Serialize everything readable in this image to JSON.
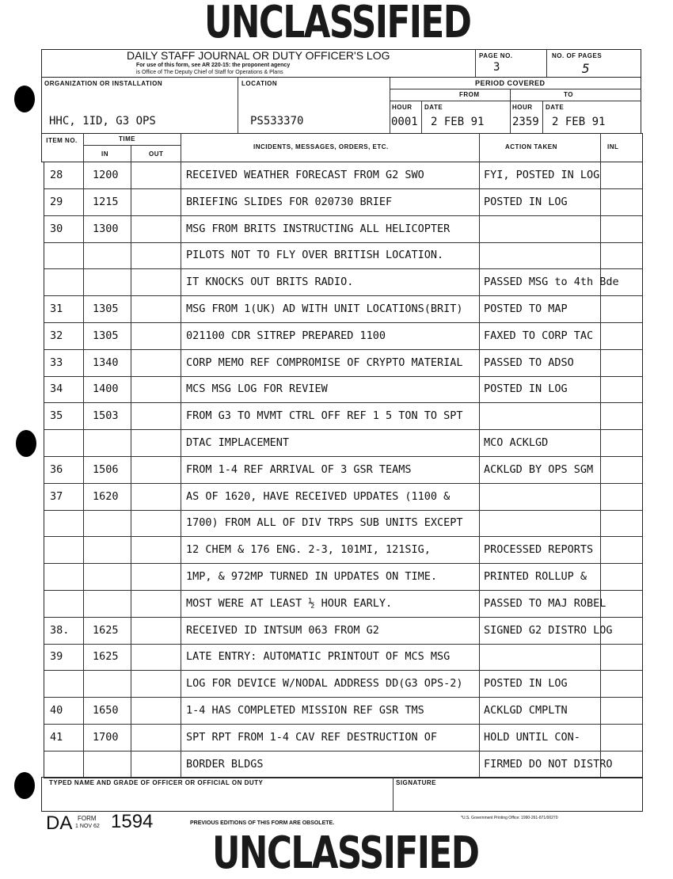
{
  "stamps": {
    "top": "UNCLASSIFIED",
    "bottom": "UNCLASSIFIED"
  },
  "form": {
    "title": "DAILY STAFF JOURNAL OR DUTY OFFICER'S LOG",
    "subtitle1": "For use of this form, see AR 220-15: the proponent agency",
    "subtitle2": "is Office of The Deputy Chief of Staff for Operations & Plans",
    "page_no_label": "PAGE NO.",
    "page_no": "3",
    "pages_label": "NO. OF PAGES",
    "pages": "5",
    "org_label": "ORGANIZATION OR INSTALLATION",
    "org": "HHC, 1ID, G3 OPS",
    "loc_label": "LOCATION",
    "loc": "PS533370",
    "period_label": "PERIOD COVERED",
    "from_label": "FROM",
    "to_label": "TO",
    "hour_label": "HOUR",
    "date_label": "DATE",
    "from_hour": "0001",
    "from_date": "2 FEB 91",
    "to_hour": "2359",
    "to_date": "2 FEB 91"
  },
  "columns": {
    "item": "ITEM NO.",
    "time": "TIME",
    "in": "IN",
    "out": "OUT",
    "incidents": "INCIDENTS, MESSAGES, ORDERS, ETC.",
    "action": "ACTION TAKEN",
    "inl": "INL"
  },
  "rows": [
    {
      "item": "28",
      "in": "1200",
      "text": "RECEIVED WEATHER FORECAST FROM G2 SWO",
      "action": "FYI, POSTED IN LOG"
    },
    {
      "item": "29",
      "in": "1215",
      "text": "BRIEFING SLIDES FOR 020730 BRIEF",
      "action": "POSTED IN LOG"
    },
    {
      "item": "30",
      "in": "1300",
      "text": "MSG FROM BRITS INSTRUCTING ALL HELICOPTER",
      "action": ""
    },
    {
      "item": "",
      "in": "",
      "text": "PILOTS NOT TO FLY OVER BRITISH LOCATION.",
      "action": ""
    },
    {
      "item": "",
      "in": "",
      "text": "IT KNOCKS OUT BRITS RADIO.",
      "action": "PASSED MSG to 4th Bde"
    },
    {
      "item": "31",
      "in": "1305",
      "text": "MSG FROM 1(UK) AD WITH UNIT LOCATIONS(BRIT)",
      "action": "POSTED TO MAP"
    },
    {
      "item": "32",
      "in": "1305",
      "text": "021100 CDR SITREP PREPARED 1100",
      "action": "FAXED TO CORP TAC"
    },
    {
      "item": "33",
      "in": "1340",
      "text": "CORP MEMO REF COMPROMISE OF CRYPTO MATERIAL",
      "action": "PASSED TO ADSO"
    },
    {
      "item": "34",
      "in": "1400",
      "text": "MCS MSG LOG FOR REVIEW",
      "action": "POSTED IN LOG"
    },
    {
      "item": "35",
      "in": "1503",
      "text": "FROM G3 TO MVMT CTRL OFF REF 1 5 TON TO SPT",
      "action": ""
    },
    {
      "item": "",
      "in": "",
      "text": "DTAC IMPLACEMENT",
      "action": "MCO ACKLGD"
    },
    {
      "item": "36",
      "in": "1506",
      "text": "FROM 1-4 REF ARRIVAL OF 3 GSR TEAMS",
      "action": "ACKLGD BY OPS SGM"
    },
    {
      "item": "37",
      "in": "1620",
      "text": "AS OF 1620, HAVE RECEIVED UPDATES (1100 &",
      "action": ""
    },
    {
      "item": "",
      "in": "",
      "text": "1700) FROM ALL OF DIV TRPS SUB UNITS EXCEPT",
      "action": ""
    },
    {
      "item": "",
      "in": "",
      "text": "12 CHEM & 176 ENG.  2-3, 101MI, 121SIG,",
      "action": "PROCESSED REPORTS"
    },
    {
      "item": "",
      "in": "",
      "text": "1MP, & 972MP TURNED IN UPDATES ON TIME.",
      "action": "PRINTED ROLLUP &"
    },
    {
      "item": "",
      "in": "",
      "text": "MOST WERE AT LEAST ½ HOUR EARLY.",
      "action": "PASSED TO MAJ ROBEL"
    },
    {
      "item": "38.",
      "in": "1625",
      "text": "RECEIVED ID INTSUM 063 FROM G2",
      "action": "SIGNED G2 DISTRO LOG"
    },
    {
      "item": "39",
      "in": "1625",
      "text": "LATE ENTRY:  AUTOMATIC PRINTOUT OF MCS MSG",
      "action": ""
    },
    {
      "item": "",
      "in": "",
      "text": "LOG FOR DEVICE W/NODAL ADDRESS DD(G3 OPS-2)",
      "action": "POSTED IN LOG"
    },
    {
      "item": "40",
      "in": "1650",
      "text": "1-4 HAS COMPLETED MISSION REF GSR TMS",
      "action": "ACKLGD CMPLTN"
    },
    {
      "item": "41",
      "in": "1700",
      "text": "SPT RPT FROM 1-4 CAV REF DESTRUCTION OF",
      "action": "HOLD UNTIL CON-"
    },
    {
      "item": "",
      "in": "",
      "text": "BORDER BLDGS",
      "action": "FIRMED DO NOT DISTRO"
    }
  ],
  "footer": {
    "name_label": "TYPED NAME AND GRADE OF OFFICER OR OFFICIAL ON DUTY",
    "sig_label": "SIGNATURE",
    "form_da": "DA",
    "form_word": "FORM",
    "form_date": "1 NOV 62",
    "form_no": "1594",
    "previous": "PREVIOUS EDITIONS OF THIS FORM ARE OBSOLETE.",
    "gpo": "*U.S. Government Printing Office: 1990-261-871/00270"
  }
}
